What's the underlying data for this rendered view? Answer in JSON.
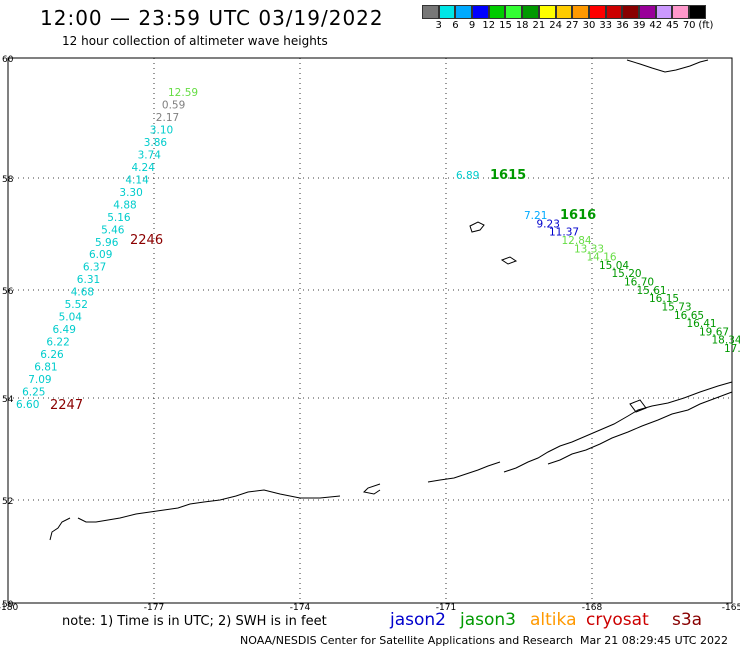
{
  "title": "12:00 — 23:59 UTC 03/19/2022",
  "subtitle": "12 hour collection of altimeter wave heights",
  "colorbar": {
    "colors": [
      "#777777",
      "#00e6e6",
      "#00aaff",
      "#0000ff",
      "#00cc00",
      "#33ff33",
      "#009900",
      "#ffff00",
      "#ffcc00",
      "#ff9900",
      "#ff0000",
      "#cc0000",
      "#880000",
      "#990099",
      "#cc99ff",
      "#ff99cc",
      "#000000"
    ],
    "labels": [
      "3",
      "6",
      "9",
      "12",
      "15",
      "18",
      "21",
      "24",
      "27",
      "30",
      "33",
      "36",
      "39",
      "42",
      "45",
      "70",
      "(ft)"
    ]
  },
  "lat_ticks": [
    "60",
    "58",
    "56",
    "54",
    "52",
    "50"
  ],
  "lon_ticks": [
    "-180",
    "-177",
    "-174",
    "-171",
    "-168",
    "-165"
  ],
  "track_west": {
    "values": [
      "12.59",
      "0.59",
      "2.17",
      "3.10",
      "3.86",
      "3.74",
      "4.24",
      "4.14",
      "3.30",
      "4.88",
      "5.16",
      "5.46",
      "5.96",
      "6.09",
      "6.37",
      "6.31",
      "4.68",
      "5.52",
      "5.04",
      "6.49",
      "6.22",
      "6.26",
      "6.81",
      "7.09",
      "6.25",
      "6.60"
    ],
    "colors": [
      "#66dd44",
      "#808080",
      "#808080",
      "#00cccc",
      "#00cccc",
      "#00cccc",
      "#00cccc",
      "#00cccc",
      "#00cccc",
      "#00cccc",
      "#00cccc",
      "#00cccc",
      "#00cccc",
      "#00cccc",
      "#00cccc",
      "#00cccc",
      "#00cccc",
      "#00cccc",
      "#00cccc",
      "#00cccc",
      "#00cccc",
      "#00cccc",
      "#00cccc",
      "#00cccc",
      "#00cccc",
      "#00cccc"
    ],
    "time_start": "2246",
    "time_end": "2247",
    "time_color": "#8b0000"
  },
  "track_east": {
    "pre_values": [
      "6.89"
    ],
    "pre_color": "#00cccc",
    "time_a": "1615",
    "time_b": "1616",
    "time_color": "#009900",
    "values": [
      "7.21",
      "9.23",
      "11.37",
      "12.84",
      "13.33",
      "14.16",
      "15.04",
      "15.20",
      "16.70",
      "15.61",
      "16.15",
      "15.73",
      "16.65",
      "16.41",
      "19.67",
      "18.34",
      "17."
    ],
    "colors": [
      "#00aaff",
      "#0000cc",
      "#0000cc",
      "#66dd44",
      "#66dd44",
      "#66dd44",
      "#009900",
      "#009900",
      "#009900",
      "#009900",
      "#009900",
      "#009900",
      "#009900",
      "#009900",
      "#009900",
      "#009900",
      "#009900"
    ]
  },
  "note": "note: 1) Time is in UTC; 2) SWH is in feet",
  "satellites": [
    {
      "name": "jason2",
      "color": "#0000cc"
    },
    {
      "name": "jason3",
      "color": "#009900"
    },
    {
      "name": "altika",
      "color": "#ff9900"
    },
    {
      "name": "cryosat",
      "color": "#cc0000"
    },
    {
      "name": "s3a",
      "color": "#880000"
    }
  ],
  "credit": "NOAA/NESDIS Center for Satellite Applications and Research",
  "timestamp": "Mar 21 08:29:45 UTC 2022"
}
